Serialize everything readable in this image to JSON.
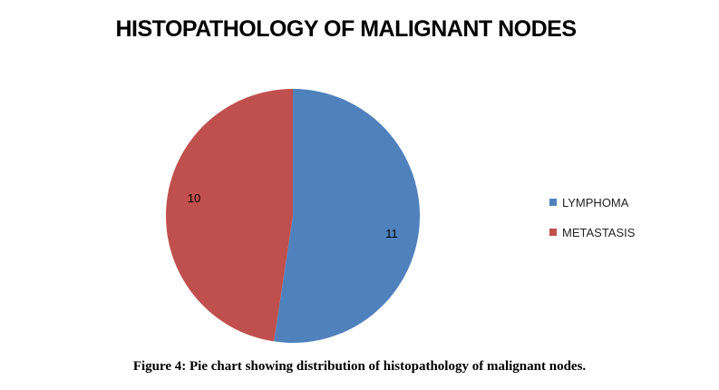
{
  "chart_data": {
    "type": "pie",
    "title": "HISTOPATHOLOGY OF MALIGNANT NODES",
    "categories": [
      "LYMPHOMA",
      "METASTASIS"
    ],
    "values": [
      11,
      10
    ],
    "colors": [
      "#4F81BD",
      "#C0504D"
    ],
    "data_labels": [
      "11",
      "10"
    ],
    "legend_position": "right",
    "start": "12 o'clock, clockwise"
  },
  "caption": "Figure 4: Pie chart showing distribution of histopathology of malignant nodes."
}
